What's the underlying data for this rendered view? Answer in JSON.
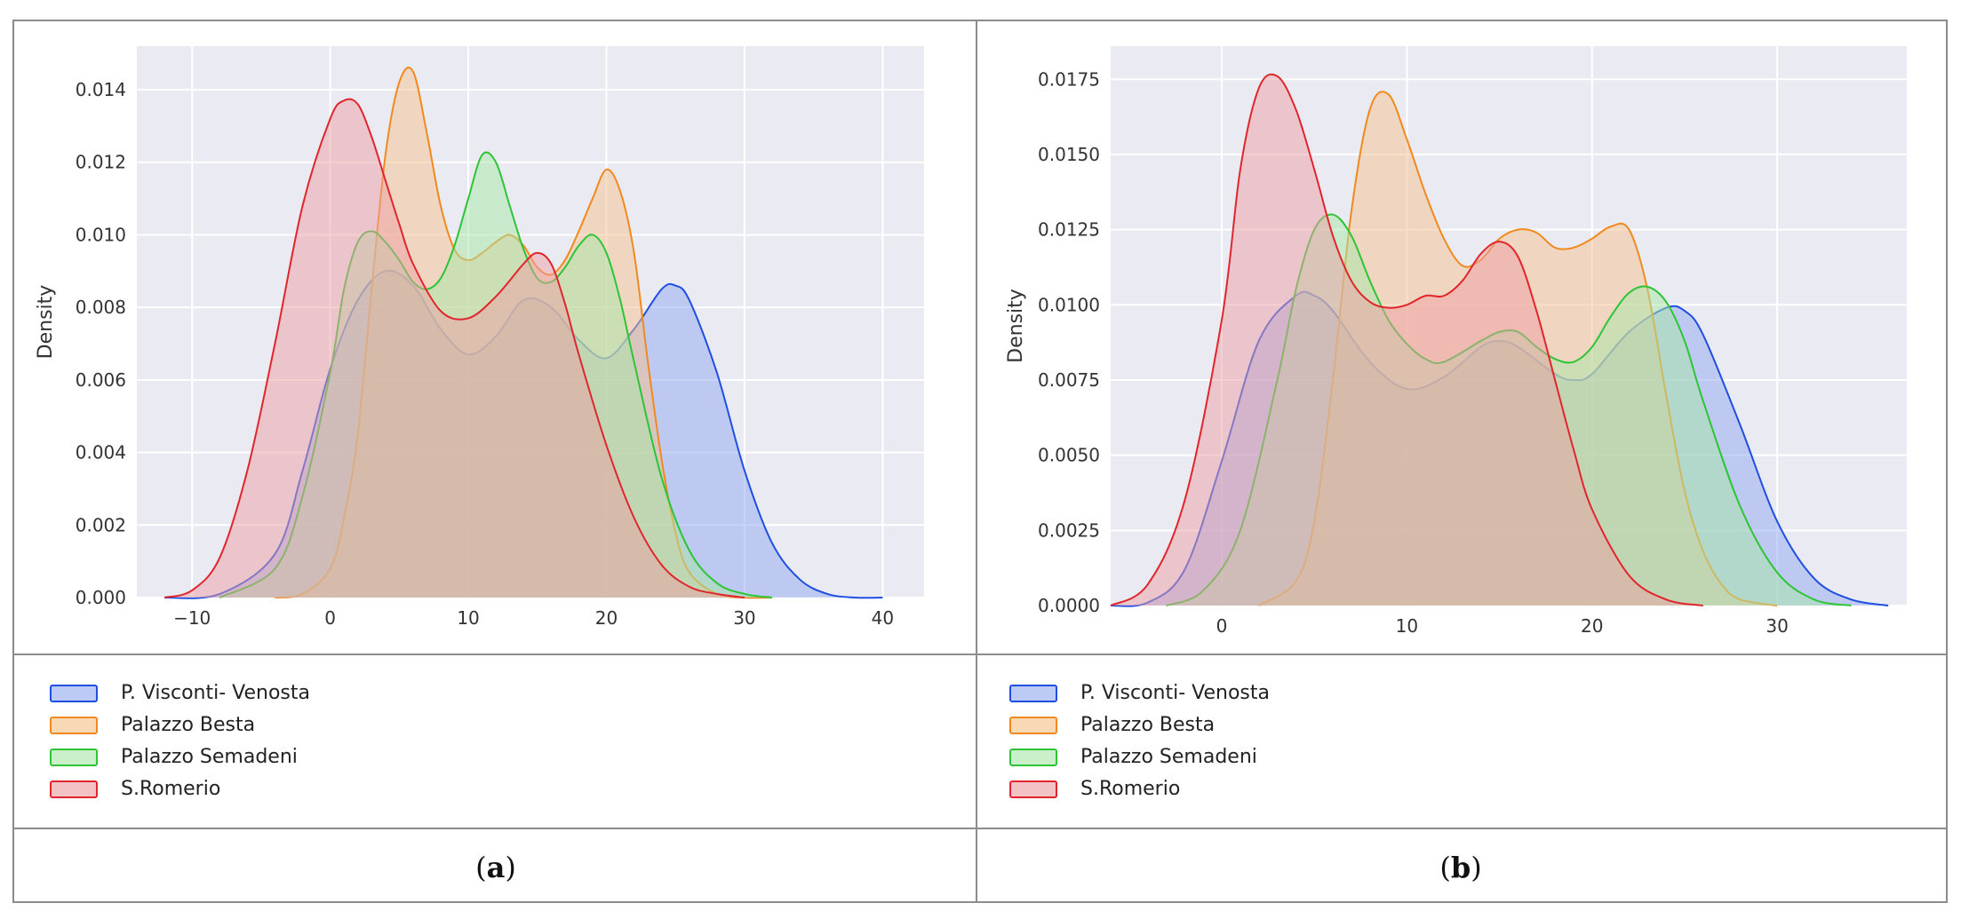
{
  "chart_data": [
    {
      "type": "area",
      "panel": "a",
      "ylabel": "Density",
      "xlabel": "",
      "xlim": [
        -14,
        43
      ],
      "ylim": [
        0,
        0.0152
      ],
      "xticks": [
        -10,
        0,
        10,
        20,
        30,
        40
      ],
      "xtick_labels": [
        "−10",
        "0",
        "10",
        "20",
        "30",
        "40"
      ],
      "yticks": [
        0,
        0.002,
        0.004,
        0.006,
        0.008,
        0.01,
        0.012,
        0.014
      ],
      "ytick_labels": [
        "0.000",
        "0.002",
        "0.004",
        "0.006",
        "0.008",
        "0.010",
        "0.012",
        "0.014"
      ],
      "grid": true,
      "series": [
        {
          "name": "P. Visconti- Venosta",
          "color": "#1f4fe0",
          "fill": "#8fa8f0",
          "x": [
            -12,
            -8,
            -4,
            -2,
            0,
            2,
            4,
            6,
            8,
            10,
            12,
            14,
            16,
            18,
            20,
            22,
            24,
            25,
            26,
            28,
            30,
            32,
            34,
            36,
            38,
            40
          ],
          "y": [
            0,
            0.0001,
            0.0012,
            0.0035,
            0.0063,
            0.0082,
            0.009,
            0.0086,
            0.0074,
            0.0067,
            0.0072,
            0.0082,
            0.008,
            0.0071,
            0.0066,
            0.0074,
            0.0085,
            0.0086,
            0.0082,
            0.0062,
            0.0035,
            0.0015,
            0.0005,
            0.0001,
            0,
            0
          ]
        },
        {
          "name": "Palazzo Besta",
          "color": "#f08a1e",
          "fill": "#f5c08e",
          "x": [
            -4,
            -2,
            0,
            1,
            2,
            3,
            4,
            5,
            6,
            7,
            8,
            9,
            10,
            11,
            12,
            13,
            14,
            15,
            16,
            17,
            18,
            19,
            20,
            21,
            22,
            23,
            24,
            25,
            26,
            28,
            30,
            32
          ],
          "y": [
            0,
            0.0001,
            0.0008,
            0.0022,
            0.0045,
            0.0085,
            0.0122,
            0.0142,
            0.0145,
            0.0128,
            0.0108,
            0.0096,
            0.0093,
            0.0095,
            0.0098,
            0.01,
            0.0097,
            0.0091,
            0.0089,
            0.0093,
            0.0101,
            0.011,
            0.0118,
            0.0112,
            0.0095,
            0.0065,
            0.0038,
            0.0018,
            0.0007,
            0.0001,
            0,
            0
          ]
        },
        {
          "name": "Palazzo Semadeni",
          "color": "#2ec437",
          "fill": "#a8e8a8",
          "x": [
            -8,
            -4,
            -2,
            0,
            1,
            2,
            3,
            4,
            5,
            6,
            7,
            8,
            9,
            10,
            11,
            12,
            13,
            14,
            15,
            16,
            17,
            18,
            19,
            20,
            21,
            22,
            24,
            26,
            28,
            30,
            32
          ],
          "y": [
            0,
            0.0008,
            0.0028,
            0.0062,
            0.0085,
            0.0098,
            0.0101,
            0.0098,
            0.0093,
            0.0087,
            0.0085,
            0.0088,
            0.0097,
            0.011,
            0.0122,
            0.012,
            0.0108,
            0.0096,
            0.0088,
            0.0087,
            0.0091,
            0.0097,
            0.01,
            0.0095,
            0.0082,
            0.0065,
            0.0033,
            0.0013,
            0.0004,
            0.0001,
            0
          ]
        },
        {
          "name": "S.Romerio",
          "color": "#e0262c",
          "fill": "#eca0a3",
          "x": [
            -12,
            -10,
            -8,
            -6,
            -4,
            -2,
            0,
            1,
            2,
            3,
            4,
            5,
            6,
            8,
            10,
            12,
            14,
            15,
            16,
            17,
            18,
            20,
            22,
            24,
            26,
            28,
            30
          ],
          "y": [
            0,
            0.0002,
            0.0011,
            0.0035,
            0.007,
            0.0108,
            0.0132,
            0.0137,
            0.0136,
            0.0127,
            0.0115,
            0.0103,
            0.0092,
            0.0079,
            0.0077,
            0.0083,
            0.0092,
            0.0095,
            0.0092,
            0.0081,
            0.0067,
            0.0042,
            0.0022,
            0.0009,
            0.0003,
            0.0001,
            0
          ]
        }
      ]
    },
    {
      "type": "area",
      "panel": "b",
      "ylabel": "Density",
      "xlabel": "",
      "xlim": [
        -6,
        37
      ],
      "ylim": [
        0,
        0.0186
      ],
      "xticks": [
        0,
        10,
        20,
        30
      ],
      "xtick_labels": [
        "0",
        "10",
        "20",
        "30"
      ],
      "yticks": [
        0,
        0.0025,
        0.005,
        0.0075,
        0.01,
        0.0125,
        0.015,
        0.0175
      ],
      "ytick_labels": [
        "0.0000",
        "0.0025",
        "0.0050",
        "0.0075",
        "0.0100",
        "0.0125",
        "0.0150",
        "0.0175"
      ],
      "grid": true,
      "series": [
        {
          "name": "P. Visconti- Venosta",
          "color": "#1f4fe0",
          "fill": "#8fa8f0",
          "x": [
            -6,
            -4,
            -2,
            0,
            2,
            4,
            5,
            6,
            8,
            10,
            12,
            14,
            15,
            16,
            18,
            19,
            20,
            22,
            24,
            25,
            26,
            28,
            30,
            32,
            34,
            36
          ],
          "y": [
            0,
            0.0001,
            0.0012,
            0.0048,
            0.0088,
            0.0103,
            0.0103,
            0.0098,
            0.0081,
            0.0072,
            0.0076,
            0.0086,
            0.0088,
            0.0086,
            0.0077,
            0.0075,
            0.0077,
            0.0091,
            0.0099,
            0.0098,
            0.009,
            0.006,
            0.0028,
            0.0009,
            0.0002,
            0
          ]
        },
        {
          "name": "Palazzo Besta",
          "color": "#f08a1e",
          "fill": "#f5c08e",
          "x": [
            2,
            4,
            5,
            6,
            7,
            8,
            9,
            10,
            11,
            12,
            13,
            14,
            15,
            16,
            17,
            18,
            19,
            20,
            21,
            22,
            23,
            24,
            25,
            26,
            27,
            28,
            30
          ],
          "y": [
            0,
            0.0008,
            0.0028,
            0.0075,
            0.0131,
            0.0165,
            0.017,
            0.0155,
            0.0137,
            0.0122,
            0.0113,
            0.0115,
            0.0122,
            0.0125,
            0.0124,
            0.0119,
            0.0119,
            0.0122,
            0.0126,
            0.0125,
            0.0105,
            0.007,
            0.0038,
            0.0018,
            0.0007,
            0.0002,
            0
          ]
        },
        {
          "name": "Palazzo Semadeni",
          "color": "#2ec437",
          "fill": "#a8e8a8",
          "x": [
            -3,
            -1,
            1,
            3,
            4,
            5,
            6,
            7,
            8,
            9,
            10,
            11,
            12,
            14,
            15,
            16,
            17,
            18,
            19,
            20,
            21,
            22,
            23,
            24,
            25,
            26,
            28,
            30,
            32,
            34
          ],
          "y": [
            0,
            0.0005,
            0.0025,
            0.0075,
            0.0105,
            0.0125,
            0.013,
            0.0123,
            0.0108,
            0.0095,
            0.0087,
            0.0082,
            0.0081,
            0.0088,
            0.0091,
            0.0091,
            0.0086,
            0.0082,
            0.0081,
            0.0086,
            0.0096,
            0.0104,
            0.0106,
            0.0101,
            0.0088,
            0.0068,
            0.0033,
            0.0011,
            0.0002,
            0
          ]
        },
        {
          "name": "S.Romerio",
          "color": "#e0262c",
          "fill": "#eca0a3",
          "x": [
            -6,
            -4,
            -2,
            0,
            1,
            2,
            3,
            4,
            5,
            6,
            7,
            8,
            9,
            10,
            11,
            12,
            13,
            14,
            15,
            16,
            17,
            18,
            19,
            20,
            22,
            24,
            26
          ],
          "y": [
            0,
            0.0007,
            0.0035,
            0.0095,
            0.0145,
            0.0172,
            0.0176,
            0.0165,
            0.0145,
            0.0123,
            0.0108,
            0.0101,
            0.0099,
            0.01,
            0.0103,
            0.0103,
            0.0108,
            0.0117,
            0.0121,
            0.0116,
            0.0098,
            0.0075,
            0.0052,
            0.0032,
            0.001,
            0.0002,
            0
          ]
        }
      ]
    }
  ],
  "legend": {
    "items": [
      {
        "label": "P. Visconti- Venosta",
        "border": "#1f4fe0",
        "fill": "#bccbf5"
      },
      {
        "label": "Palazzo Besta",
        "border": "#f08a1e",
        "fill": "#f9d8b6"
      },
      {
        "label": "Palazzo Semadeni",
        "border": "#2ec437",
        "fill": "#c9f0c9"
      },
      {
        "label": "S.Romerio",
        "border": "#e0262c",
        "fill": "#f3c2c4"
      }
    ]
  },
  "captions": {
    "a": {
      "open": "(",
      "letter": "a",
      "close": ")"
    },
    "b": {
      "open": "(",
      "letter": "b",
      "close": ")"
    }
  }
}
